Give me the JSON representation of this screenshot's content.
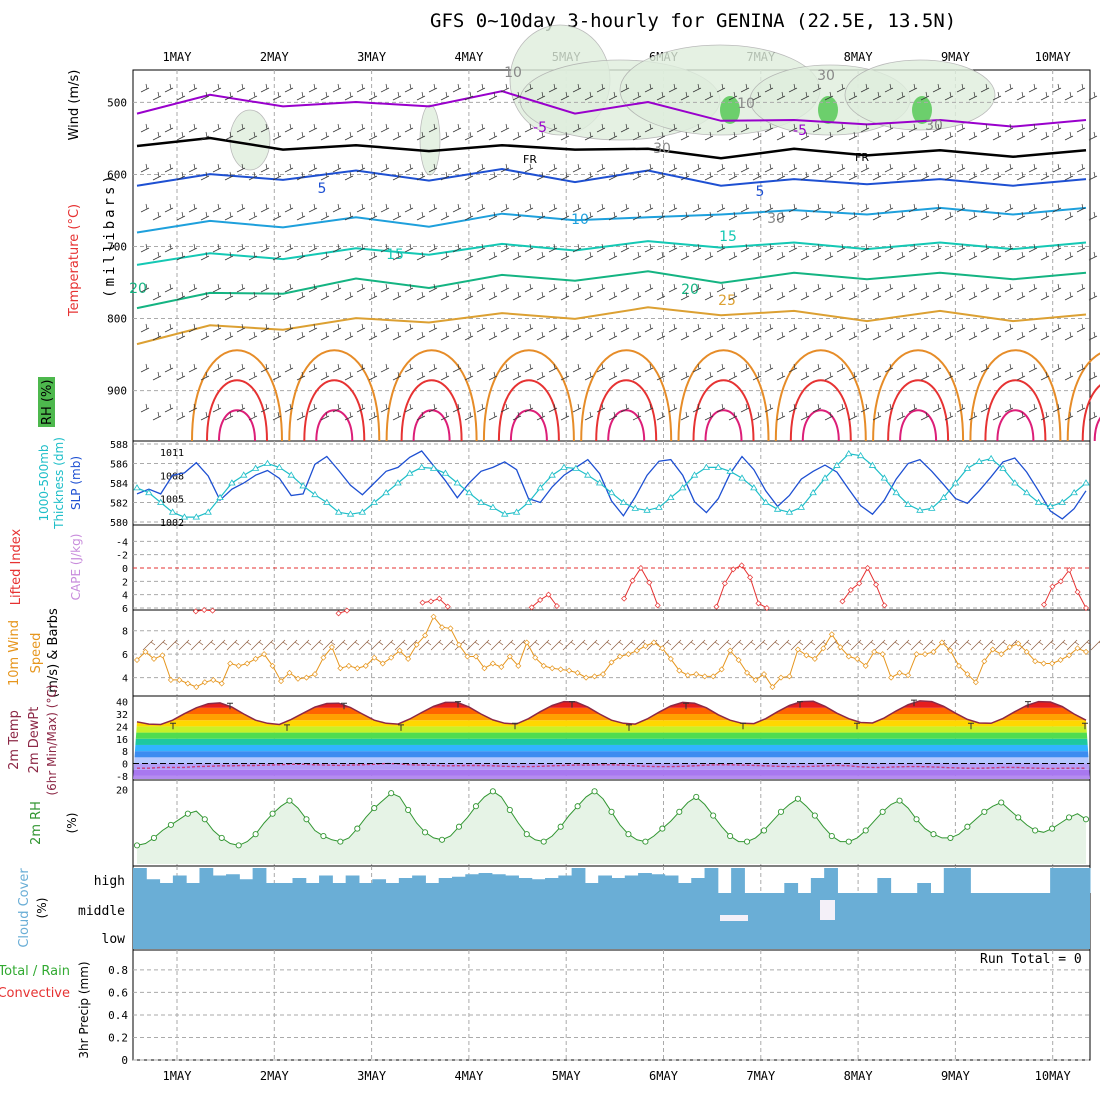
{
  "title": "GFS 0~10day 3-hourly for GENINA (22.5E, 13.5N)",
  "dates": [
    "1MAY",
    "2MAY",
    "3MAY",
    "4MAY",
    "5MAY",
    "6MAY",
    "7MAY",
    "8MAY",
    "9MAY",
    "10MAY"
  ],
  "run_total": "Run Total = 0",
  "colors": {
    "purple": "#9900cc",
    "blue": "#1e50d2",
    "lightblue": "#1ea0dc",
    "teal": "#14c8b4",
    "green": "#14b482",
    "gold": "#dca032",
    "orange": "#e68c28",
    "red": "#e63232",
    "magenta": "#dc1e78",
    "rhgreen": "#329632",
    "cloud": "#6aaed6"
  },
  "chart_data": [
    {
      "panel": "upper-air",
      "type": "contour",
      "ylabel_parts": [
        "RH (%)",
        "Temperature (°C)",
        "Wind (m/s)",
        "(millibars)"
      ],
      "y_ticks": [
        500,
        600,
        700,
        800,
        900
      ],
      "contour_labels": [
        "-5",
        "FR",
        "5",
        "10",
        "15",
        "20",
        "25",
        "10",
        "30",
        "30",
        "-5",
        "FR",
        "5",
        "15",
        "20",
        "30",
        "10",
        "30"
      ],
      "isotherms": [
        {
          "name": "-5",
          "color": "#9900cc",
          "values": [
            510,
            495,
            500,
            505,
            500,
            490,
            510,
            505,
            520,
            530,
            525,
            530,
            528,
            530
          ]
        },
        {
          "name": "FR",
          "color": "#000000",
          "values": [
            555,
            555,
            560,
            565,
            562,
            565,
            560,
            570,
            572,
            570,
            568,
            572,
            570,
            572
          ]
        },
        {
          "name": "5",
          "color": "#1e50d2",
          "values": [
            610,
            605,
            602,
            600,
            603,
            598,
            605,
            600,
            610,
            612,
            608,
            612,
            610,
            612
          ]
        },
        {
          "name": "10",
          "color": "#1ea0dc",
          "values": [
            675,
            670,
            668,
            665,
            667,
            660,
            658,
            665,
            650,
            655,
            650,
            652,
            650,
            652
          ]
        },
        {
          "name": "15",
          "color": "#14c8b4",
          "values": [
            720,
            715,
            712,
            708,
            706,
            702,
            700,
            698,
            696,
            700,
            698,
            700,
            698,
            700
          ]
        },
        {
          "name": "20",
          "color": "#14b482",
          "values": [
            780,
            770,
            760,
            750,
            752,
            745,
            742,
            740,
            745,
            742,
            740,
            742,
            740,
            742
          ]
        },
        {
          "name": "25",
          "color": "#dca032",
          "values": [
            830,
            815,
            810,
            805,
            800,
            798,
            795,
            790,
            790,
            795,
            798,
            795,
            798,
            800
          ]
        }
      ]
    },
    {
      "panel": "thickness-slp",
      "type": "line",
      "ylabel_parts": [
        "1000-500mb",
        "Thickness (dm)",
        "SLP (mb)"
      ],
      "left_ticks": [
        "588",
        "586",
        "584",
        "582",
        "580"
      ],
      "right_ticks": [
        "1011",
        "1008",
        "1005",
        "1002"
      ],
      "series": [
        {
          "name": "SLP",
          "axis": "right",
          "color": "#1e50d2",
          "values": [
            1005.6,
            1006.2,
            1005.6,
            1008.0,
            1008.3,
            1009.6,
            1007.9,
            1004.8,
            1006.2,
            1007.0,
            1008.0,
            1008.6,
            1007.6,
            1005.4,
            1005.6,
            1009.4,
            1010.4,
            1008.6,
            1006.7,
            1005.5,
            1007.0,
            1008.5,
            1009.0,
            1010.3,
            1011.1,
            1009.2,
            1007.3,
            1005.1,
            1007.0,
            1008.5,
            1009.0,
            1009.7,
            1008.7,
            1005.0,
            1004.5,
            1006.5,
            1008.0,
            1009.0,
            1010.0,
            1008.2,
            1004.7,
            1002.8,
            1005.2,
            1008.0,
            1009.8,
            1010.0,
            1008.0,
            1004.6,
            1003.2,
            1005.0,
            1008.2,
            1010.4,
            1008.7,
            1006.0,
            1004.0,
            1005.4,
            1007.5,
            1008.5,
            1009.3,
            1008.4,
            1006.2,
            1004.1,
            1003.0,
            1004.8,
            1007.5,
            1009.5,
            1010.0,
            1008.5,
            1006.8,
            1005.0,
            1004.4,
            1006.0,
            1007.8,
            1009.7,
            1010.2,
            1008.4,
            1006.0,
            1003.4,
            1002.4,
            1003.7,
            1006.0
          ]
        },
        {
          "name": "Thickness",
          "axis": "left",
          "color": "#1ebec8",
          "values": [
            583.5,
            583.0,
            582.0,
            581.0,
            580.5,
            580.5,
            581.0,
            582.5,
            584.0,
            584.8,
            585.5,
            586.0,
            585.6,
            584.8,
            583.7,
            582.8,
            582.0,
            581.0,
            580.8,
            581.0,
            582.0,
            583.0,
            584.0,
            585.0,
            585.6,
            585.5,
            585.0,
            584.0,
            583.0,
            582.0,
            581.5,
            580.8,
            581.0,
            582.0,
            583.5,
            584.8,
            585.6,
            585.5,
            584.8,
            584.0,
            583.0,
            582.0,
            581.4,
            581.2,
            581.5,
            582.5,
            583.5,
            584.8,
            585.6,
            585.6,
            585.2,
            584.5,
            583.5,
            582.0,
            581.3,
            581.0,
            581.5,
            583.0,
            584.5,
            585.8,
            587.0,
            586.8,
            585.8,
            584.5,
            583.0,
            581.8,
            581.2,
            581.4,
            582.5,
            584.0,
            585.5,
            586.2,
            586.5,
            585.5,
            584.0,
            583.0,
            582.0,
            581.6,
            582.0,
            583.0,
            584.0
          ]
        }
      ]
    },
    {
      "panel": "stability",
      "type": "line",
      "ylabel_parts": [
        "Lifted Index",
        "CAPE (J/kg)"
      ],
      "y_ticks": [
        "-4",
        "-2",
        "0",
        "2",
        "4",
        "6"
      ],
      "series": [
        {
          "name": "Lifted Index",
          "color": "#e63232",
          "values": [
            null,
            null,
            null,
            null,
            null,
            null,
            null,
            6.5,
            6.3,
            6.4,
            null,
            null,
            null,
            null,
            null,
            null,
            null,
            null,
            null,
            null,
            null,
            null,
            null,
            null,
            6.8,
            6.4,
            null,
            null,
            null,
            null,
            null,
            null,
            null,
            null,
            5.2,
            5.0,
            4.6,
            5.8,
            null,
            null,
            null,
            null,
            null,
            null,
            null,
            null,
            null,
            5.9,
            4.8,
            4.0,
            5.7,
            null,
            null,
            null,
            null,
            null,
            null,
            null,
            4.6,
            1.9,
            0.0,
            2.2,
            5.6,
            null,
            null,
            null,
            null,
            null,
            null,
            5.8,
            2.3,
            0.2,
            -0.4,
            1.4,
            5.3,
            6.0,
            null,
            null,
            null,
            null,
            null,
            null,
            null,
            null,
            5.0,
            3.3,
            2.3,
            0.0,
            2.5,
            5.6,
            null,
            null,
            null,
            null,
            null,
            null,
            null,
            null,
            null,
            null,
            null,
            null,
            null,
            null,
            null,
            null,
            null,
            null,
            5.5,
            2.8,
            2.0,
            0.3,
            3.6,
            6.0
          ]
        }
      ]
    },
    {
      "panel": "10m-wind",
      "type": "line",
      "ylabel_parts": [
        "10m Wind",
        "Speed",
        "(m/s) & Barbs"
      ],
      "y_ticks": [
        "8",
        "6",
        "4"
      ],
      "series": [
        {
          "name": "Speed",
          "color": "#e6961e",
          "values": [
            5.5,
            6.2,
            5.6,
            5.9,
            3.8,
            3.8,
            3.5,
            3.2,
            3.6,
            3.8,
            3.5,
            5.2,
            5.0,
            5.2,
            5.6,
            6.0,
            5.0,
            3.7,
            4.4,
            3.9,
            4.0,
            4.3,
            5.7,
            6.6,
            4.8,
            5.0,
            4.8,
            5.0,
            5.7,
            5.2,
            5.7,
            6.3,
            5.6,
            6.8,
            7.6,
            9.2,
            8.3,
            8.2,
            6.8,
            5.8,
            5.8,
            4.8,
            5.2,
            4.9,
            5.8,
            5.0,
            7.0,
            5.7,
            5.0,
            4.8,
            4.7,
            4.6,
            4.4,
            4.0,
            4.1,
            4.3,
            5.3,
            5.8,
            6.0,
            6.3,
            6.7,
            7.0,
            6.5,
            5.6,
            4.6,
            4.2,
            4.3,
            4.1,
            4.1,
            4.7,
            6.3,
            5.5,
            4.4,
            3.8,
            4.3,
            3.2,
            4.0,
            4.1,
            6.4,
            5.9,
            5.6,
            6.5,
            7.7,
            6.6,
            5.8,
            5.6,
            5.0,
            6.2,
            6.0,
            4.0,
            4.4,
            4.2,
            6.0,
            6.0,
            6.2,
            7.0,
            6.3,
            5.0,
            4.3,
            3.6,
            5.4,
            6.4,
            6.0,
            6.6,
            6.9,
            6.2,
            5.4,
            5.2,
            5.2,
            5.5,
            5.9,
            6.5,
            6.2
          ]
        }
      ]
    },
    {
      "panel": "2m-temp",
      "type": "area",
      "ylabel_parts": [
        "2m Temp",
        "2m DewPt",
        "(6hr Min/Max) (°C)"
      ],
      "y_ticks": [
        "40",
        "32",
        "24",
        "16",
        "8",
        "0",
        "-8"
      ],
      "series": [
        {
          "name": "2m Temp",
          "color": "#8c2846",
          "values": [
            27.0,
            25.5,
            25.2,
            28.0,
            32.2,
            36.0,
            38.7,
            39.2,
            36.5,
            32.0,
            28.0,
            26.0,
            25.2,
            28.5,
            32.5,
            36.5,
            38.8,
            39.0,
            36.2,
            32.0,
            28.0,
            26.0,
            25.5,
            28.8,
            33.0,
            37.0,
            39.5,
            39.5,
            36.5,
            32.0,
            28.2,
            26.0,
            25.6,
            29.0,
            33.5,
            37.5,
            40.0,
            39.8,
            36.5,
            32.0,
            28.0,
            26.0,
            25.5,
            28.8,
            33.2,
            37.2,
            39.5,
            39.0,
            36.0,
            31.5,
            28.0,
            26.0,
            25.8,
            29.0,
            33.5,
            37.5,
            40.0,
            40.2,
            37.0,
            32.5,
            29.0,
            26.5,
            26.2,
            29.5,
            34.0,
            38.0,
            40.5,
            40.0,
            37.0,
            32.5,
            28.5,
            26.2,
            26.0,
            29.2,
            33.5,
            37.5,
            40.0,
            39.8,
            36.8,
            32.0,
            28.0
          ]
        },
        {
          "name": "2m DewPt",
          "color": "#c83c78",
          "values": [
            -3.0,
            -3.0,
            -2.5,
            -2.5,
            -2.5,
            -2.0,
            -1.8,
            -1.5,
            -1.5,
            -1.3,
            -1.3,
            -1.0,
            -0.8,
            -0.5,
            -0.5,
            -0.8,
            -1.0,
            -1.2,
            -1.0,
            -0.8,
            -0.5,
            0.0,
            -0.2,
            -0.8,
            -1.0,
            -1.2,
            -1.5,
            -1.4,
            -1.3,
            -1.3,
            -1.5,
            -1.8,
            -2.0,
            -2.0,
            -1.8,
            -1.5,
            -1.2,
            -1.0,
            -1.0,
            -0.8,
            -0.8,
            -1.0,
            -1.5,
            -1.8,
            -2.0,
            -2.0,
            -1.8,
            -1.5,
            -1.0,
            -0.8,
            -0.8,
            -1.0,
            -1.2,
            -1.5,
            -1.8,
            -2.0,
            -2.0,
            -1.8,
            -1.5,
            -1.2,
            -1.5,
            -2.2,
            -2.5,
            -2.5,
            -2.2,
            -2.0,
            -2.0,
            -2.2,
            -2.5,
            -2.8,
            -3.0,
            -3.0,
            -2.8,
            -2.5,
            -2.5,
            -2.8,
            -3.0,
            -3.2,
            -3.0,
            -3.0,
            -3.0
          ]
        }
      ],
      "minmax_ticks": [
        26,
        39,
        25,
        39,
        25,
        40,
        26,
        40,
        25,
        39,
        26,
        40,
        26,
        41,
        26,
        40,
        26
      ]
    },
    {
      "panel": "2m-rh",
      "type": "line",
      "ylabel_parts": [
        "2m RH",
        "(%)"
      ],
      "y_ticks": [
        "20"
      ],
      "series": [
        {
          "name": "2m RH",
          "color": "#329632",
          "values": [
            5.0,
            5.5,
            7.0,
            9.0,
            10.5,
            12.0,
            13.5,
            14.2,
            12.0,
            9.0,
            7.0,
            5.5,
            5.0,
            6.0,
            8.0,
            11.0,
            13.5,
            15.5,
            17.0,
            15.0,
            12.0,
            9.0,
            7.5,
            6.5,
            6.0,
            7.0,
            9.5,
            12.5,
            15.0,
            17.0,
            19.0,
            18.0,
            14.5,
            11.0,
            8.5,
            7.0,
            6.5,
            7.5,
            10.0,
            12.5,
            15.5,
            18.0,
            19.5,
            18.0,
            14.5,
            11.0,
            8.0,
            6.5,
            6.0,
            7.5,
            10.0,
            13.0,
            15.5,
            18.0,
            19.5,
            17.5,
            14.0,
            10.5,
            8.0,
            6.5,
            6.0,
            7.5,
            9.5,
            11.5,
            14.0,
            16.5,
            18.0,
            16.0,
            13.0,
            10.0,
            7.5,
            6.0,
            6.0,
            7.0,
            9.0,
            11.5,
            14.0,
            16.0,
            17.5,
            15.5,
            13.0,
            10.0,
            7.5,
            6.0,
            6.0,
            7.0,
            9.0,
            11.5,
            14.0,
            16.0,
            17.0,
            15.0,
            12.0,
            9.5,
            8.0,
            7.0,
            7.0,
            8.0,
            10.0,
            12.0,
            14.0,
            15.5,
            16.5,
            14.5,
            12.5,
            10.5,
            9.0,
            8.5,
            9.5,
            11.0,
            12.5,
            13.5,
            12.0
          ]
        }
      ]
    },
    {
      "panel": "cloud-cover",
      "type": "area",
      "ylabel_parts": [
        "Cloud Cover",
        "(%)"
      ],
      "levels": [
        "high",
        "middle",
        "low"
      ],
      "series": [
        {
          "name": "high",
          "color": "#6aaed6",
          "values": [
            100,
            55,
            40,
            70,
            40,
            100,
            70,
            75,
            55,
            100,
            40,
            40,
            60,
            40,
            70,
            40,
            70,
            40,
            55,
            40,
            60,
            70,
            40,
            60,
            65,
            75,
            80,
            75,
            70,
            60,
            55,
            60,
            70,
            100,
            40,
            70,
            60,
            70,
            80,
            75,
            70,
            40,
            60,
            100,
            0,
            100,
            0,
            0,
            0,
            40,
            0,
            60,
            100,
            0,
            0,
            0,
            60,
            0,
            0,
            40,
            0,
            100,
            100,
            0,
            0,
            0,
            0,
            0,
            0,
            100,
            100,
            100
          ]
        }
      ]
    },
    {
      "panel": "precip",
      "type": "bar",
      "ylabel_parts": [
        "Total / Rain",
        "Convective",
        "3hr Precip (mm)"
      ],
      "y_ticks": [
        "0.8",
        "0.6",
        "0.4",
        "0.2",
        "0"
      ],
      "values": []
    }
  ]
}
